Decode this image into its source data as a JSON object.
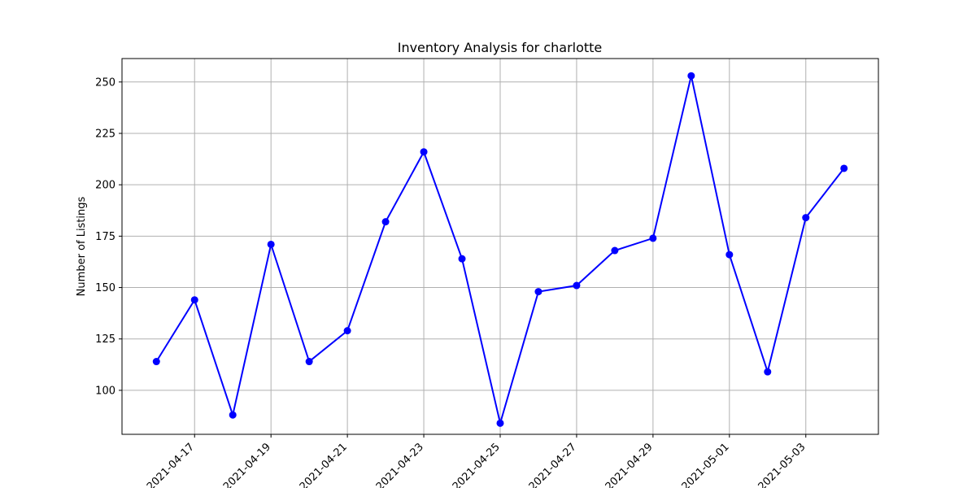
{
  "chart_data": {
    "type": "line",
    "title": "Inventory Analysis for charlotte",
    "xlabel": "",
    "ylabel": "Number of Listings",
    "grid": true,
    "x": [
      "2021-04-16",
      "2021-04-17",
      "2021-04-18",
      "2021-04-19",
      "2021-04-20",
      "2021-04-21",
      "2021-04-22",
      "2021-04-23",
      "2021-04-24",
      "2021-04-25",
      "2021-04-26",
      "2021-04-27",
      "2021-04-28",
      "2021-04-29",
      "2021-04-30",
      "2021-05-01",
      "2021-05-02",
      "2021-05-03",
      "2021-05-04"
    ],
    "series": [
      {
        "values": [
          114,
          144,
          88,
          171,
          114,
          129,
          182,
          216,
          164,
          84,
          148,
          151,
          168,
          174,
          253,
          166,
          109,
          184,
          208
        ],
        "color": "#0000ff"
      }
    ],
    "x_ticks": [
      "2021-04-17",
      "2021-04-19",
      "2021-04-21",
      "2021-04-23",
      "2021-04-25",
      "2021-04-27",
      "2021-04-29",
      "2021-05-01",
      "2021-05-03"
    ],
    "y_ticks": [
      100,
      125,
      150,
      175,
      200,
      225,
      250
    ],
    "ylim": [
      78.6,
      261.4
    ]
  }
}
